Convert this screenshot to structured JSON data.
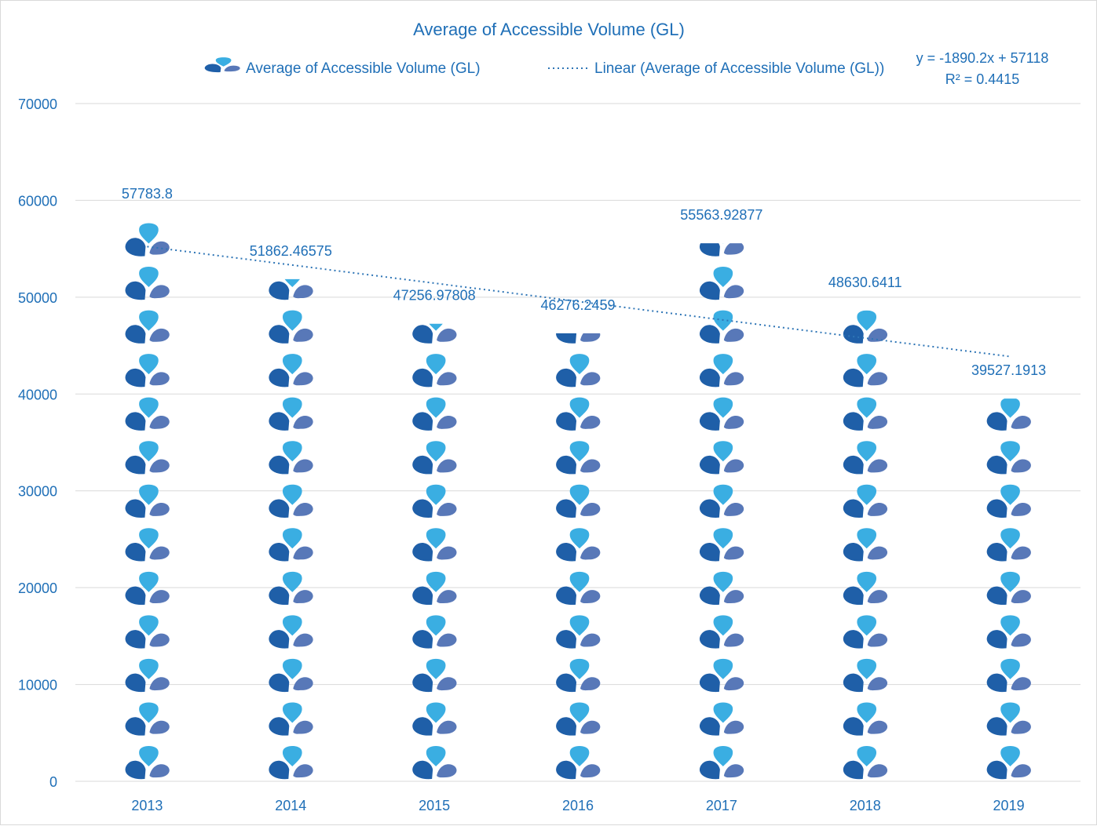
{
  "chart_data": {
    "type": "bar",
    "title": "Average of Accessible Volume (GL)",
    "categories": [
      "2013",
      "2014",
      "2015",
      "2016",
      "2017",
      "2018",
      "2019"
    ],
    "series": [
      {
        "name": "Average of Accessible Volume (GL)",
        "values": [
          57783.8,
          51862.46575,
          47256.97808,
          46276.2459,
          55563.92877,
          48630.6411,
          39527.1913
        ],
        "labels": [
          "57783.8",
          "51862.46575",
          "47256.97808",
          "46276.2459",
          "55563.92877",
          "48630.6411",
          "39527.1913"
        ]
      }
    ],
    "trendline": {
      "name": "Linear (Average of Accessible Volume (GL))",
      "slope": -1890.2,
      "intercept": 57118,
      "equation": "y = -1890.2x + 57118",
      "r_squared": "R² = 0.4415"
    },
    "ylim": [
      0,
      70000
    ],
    "yticks": [
      "0",
      "10000",
      "20000",
      "30000",
      "40000",
      "50000",
      "60000",
      "70000"
    ],
    "xlabel": "",
    "ylabel": "",
    "grid": true,
    "legend_position": "top",
    "bar_style": "stacked pictograph icons (droplet with two leaves)",
    "colors": {
      "text": "#1f6fb7",
      "droplet": "#3aaee2",
      "leaf_left": "#1f5fa8",
      "leaf_right": "#5878b8",
      "trendline": "#2e75b6",
      "grid": "#d9d9d9"
    }
  }
}
